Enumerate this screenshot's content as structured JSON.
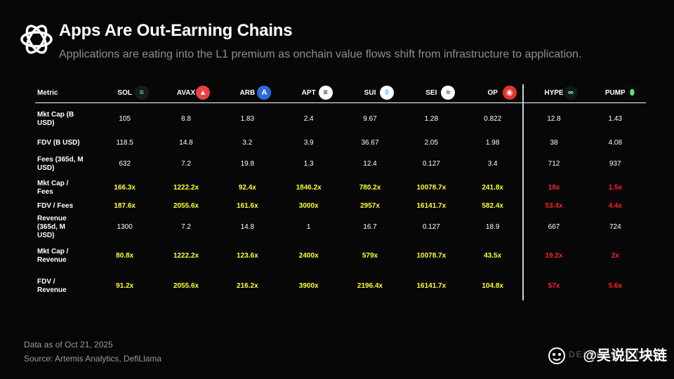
{
  "header": {
    "title": "Apps Are Out-Earning Chains",
    "subtitle": "Applications are eating into the L1 premium as onchain value flows shift from infrastructure to application."
  },
  "table": {
    "metric_header": "Metric",
    "columns": [
      {
        "name": "SOL",
        "icon": "solana-icon",
        "color": "#1a1a1a"
      },
      {
        "name": "AVAX",
        "icon": "avalanche-icon",
        "color": "#e84142"
      },
      {
        "name": "ARB",
        "icon": "arbitrum-icon",
        "color": "#2d6ad8"
      },
      {
        "name": "APT",
        "icon": "aptos-icon",
        "color": "#ffffff"
      },
      {
        "name": "SUI",
        "icon": "sui-icon",
        "color": "#ffffff"
      },
      {
        "name": "SEI",
        "icon": "sei-icon",
        "color": "#ffffff"
      },
      {
        "name": "OP",
        "icon": "optimism-icon",
        "color": "#e4352b"
      },
      {
        "name": "HYPE",
        "icon": "hyperliquid-icon",
        "color": "#0b1a18"
      },
      {
        "name": "PUMP",
        "icon": "pump-icon",
        "color": "#0a0a0a"
      }
    ],
    "rows": [
      {
        "metric": "Mkt Cap (B USD)",
        "style": "",
        "values": [
          "105",
          "8.8",
          "1.83",
          "2.4",
          "9.67",
          "1.28",
          "0.822",
          "12.8",
          "1.43"
        ]
      },
      {
        "metric": "FDV (B USD)",
        "style": "",
        "values": [
          "118.5",
          "14.8",
          "3.2",
          "3.9",
          "36.67",
          "2.05",
          "1.98",
          "38",
          "4.08"
        ]
      },
      {
        "metric": "Fees (365d, M USD)",
        "style": "",
        "values": [
          "632",
          "7.2",
          "19.8",
          "1.3",
          "12.4",
          "0.127",
          "3.4",
          "712",
          "937"
        ]
      },
      {
        "metric": "Mkt Cap / Fees",
        "style": "ratio",
        "values": [
          "166.3x",
          "1222.2x",
          "92.4x",
          "1846.2x",
          "780.2x",
          "10078.7x",
          "241.8x",
          "18x",
          "1.5x"
        ]
      },
      {
        "metric": "FDV / Fees",
        "style": "ratio",
        "values": [
          "187.6x",
          "2055.6x",
          "161.6x",
          "3000x",
          "2957x",
          "16141.7x",
          "582.4x",
          "53.4x",
          "4.4x"
        ]
      },
      {
        "metric": "Revenue (365d, M USD)",
        "style": "",
        "values": [
          "1300",
          "7.2",
          "14.8",
          "1",
          "16.7",
          "0.127",
          "18.9",
          "667",
          "724"
        ]
      },
      {
        "metric": "Mkt Cap / Revenue",
        "style": "ratio",
        "values": [
          "80.8x",
          "1222.2x",
          "123.6x",
          "2400x",
          "579x",
          "10078.7x",
          "43.5x",
          "19.2x",
          "2x"
        ]
      },
      {
        "metric": "FDV / Revenue",
        "style": "ratio",
        "values": [
          "91.2x",
          "2055.6x",
          "216.2x",
          "3900x",
          "2196.4x",
          "16141.7x",
          "104.8x",
          "57x",
          "5.6x"
        ]
      }
    ]
  },
  "footer": {
    "date": "Data as of Oct 21, 2025",
    "source": "Source: Artemis Analytics, DefiLlama"
  },
  "watermark": {
    "text": "@吴说区块链",
    "faint_brand": "DELPHI DIGITAL"
  },
  "colors": {
    "ratio_chain": "#ffff33",
    "ratio_app": "#ff2222",
    "subtitle": "#8f8f8f"
  }
}
